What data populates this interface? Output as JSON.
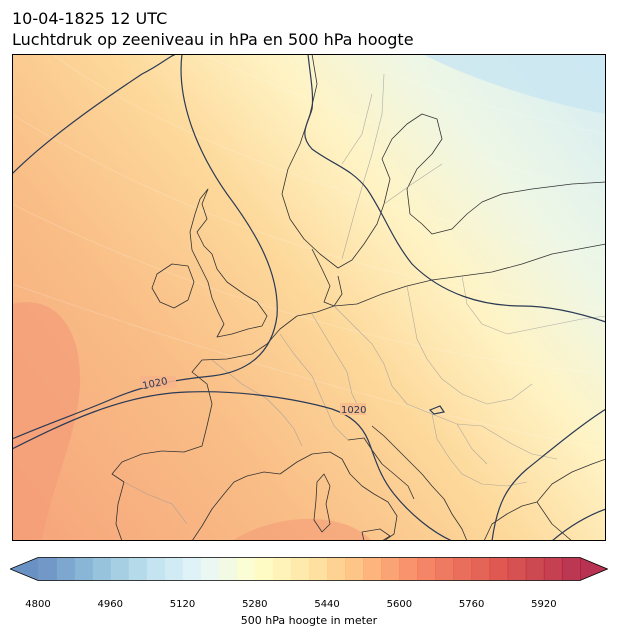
{
  "header": {
    "datetime": "10-04-1825 12 UTC",
    "subtitle": "Luchtdruk op zeeniveau in hPa en 500 hPa hoogte"
  },
  "map": {
    "region": "Europe",
    "isobar_labels": [
      "1020",
      "1020"
    ],
    "isobar_color": "#2b3a55",
    "coastline_color": "#333333",
    "border_color": "#9a9a9a"
  },
  "colorbar": {
    "label": "500 hPa hoogte in meter",
    "min": 4800,
    "max": 6000,
    "step": 40,
    "ticks": [
      "4800",
      "4960",
      "5120",
      "5280",
      "5440",
      "5600",
      "5760",
      "5920"
    ],
    "colormap": "RdYlBu_r",
    "extend": "both"
  }
}
